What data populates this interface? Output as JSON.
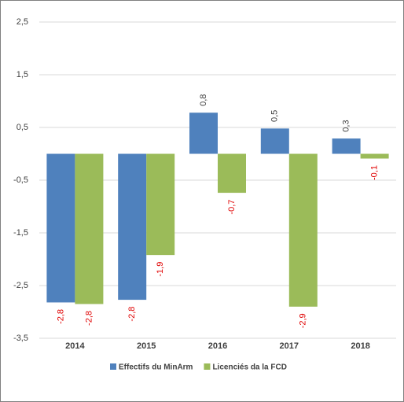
{
  "chart_data": {
    "type": "bar",
    "categories": [
      "2014",
      "2015",
      "2016",
      "2017",
      "2018"
    ],
    "series": [
      {
        "name": "Effectifs du MinArm",
        "color": "#4f81bd",
        "values": [
          -2.82,
          -2.77,
          0.78,
          0.48,
          0.29
        ],
        "value_labels": [
          "-2,8",
          "-2,8",
          "0,8",
          "0,5",
          "0,3"
        ]
      },
      {
        "name": "Licenciés da la FCD",
        "color": "#9bbb59",
        "values": [
          -2.85,
          -1.92,
          -0.74,
          -2.9,
          -0.09
        ],
        "value_labels": [
          "-2,8",
          "-1,9",
          "-0,7",
          "-2,9",
          "-0,1"
        ]
      }
    ],
    "ylim": [
      -3.5,
      2.5
    ],
    "yticks": [
      {
        "value": -3.5,
        "label": "-3,5"
      },
      {
        "value": -2.5,
        "label": "-2,5"
      },
      {
        "value": -1.5,
        "label": "-1,5"
      },
      {
        "value": -0.5,
        "label": "-0,5"
      },
      {
        "value": 0.5,
        "label": "0,5"
      },
      {
        "value": 1.5,
        "label": "1,5"
      },
      {
        "value": 2.5,
        "label": "2,5"
      }
    ],
    "grid": true,
    "legend": "bottom"
  }
}
